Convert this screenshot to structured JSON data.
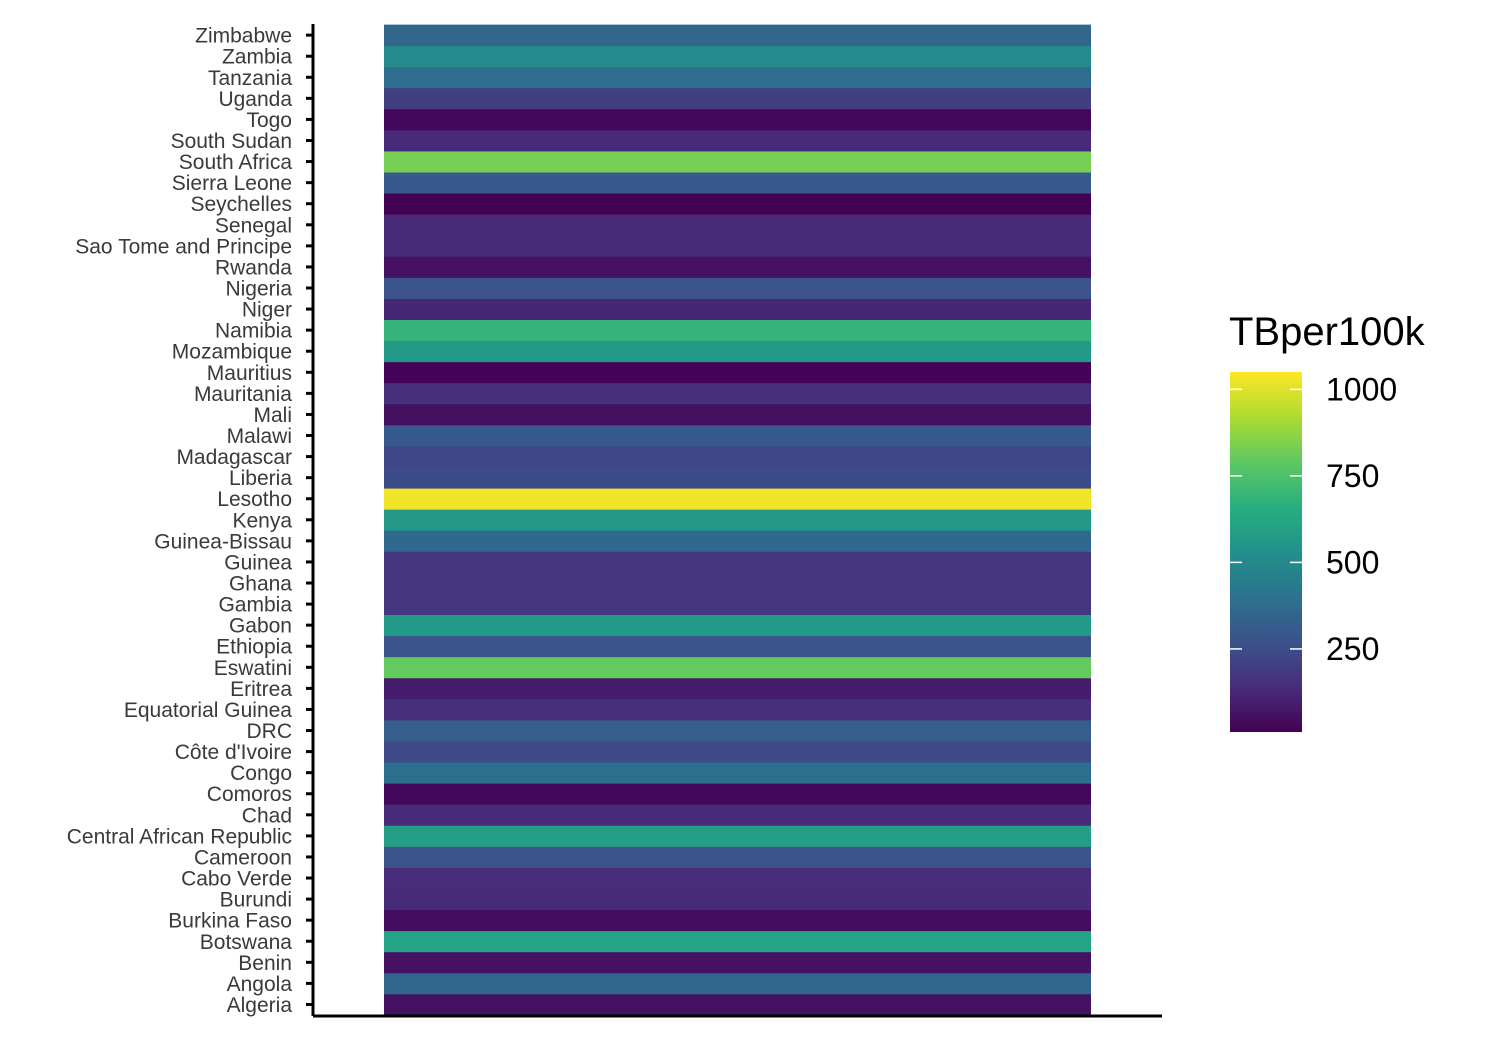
{
  "chart_data": {
    "type": "heatmap",
    "title": "",
    "xlabel": "",
    "ylabel": "",
    "categories": [
      "Algeria",
      "Angola",
      "Benin",
      "Botswana",
      "Burkina Faso",
      "Burundi",
      "Cabo Verde",
      "Cameroon",
      "Central African Republic",
      "Chad",
      "Comoros",
      "Congo",
      "Côte d'Ivoire",
      "DRC",
      "Equatorial Guinea",
      "Eritrea",
      "Eswatini",
      "Ethiopia",
      "Gabon",
      "Gambia",
      "Ghana",
      "Guinea",
      "Guinea-Bissau",
      "Kenya",
      "Lesotho",
      "Liberia",
      "Madagascar",
      "Malawi",
      "Mali",
      "Mauritania",
      "Mauritius",
      "Mozambique",
      "Namibia",
      "Niger",
      "Nigeria",
      "Rwanda",
      "Sao Tome and Principe",
      "Senegal",
      "Seychelles",
      "Sierra Leone",
      "South Africa",
      "South Sudan",
      "Togo",
      "Uganda",
      "Tanzania",
      "Zambia",
      "Zimbabwe"
    ],
    "values": [
      60,
      355,
      60,
      610,
      45,
      130,
      140,
      270,
      590,
      135,
      30,
      385,
      240,
      320,
      150,
      90,
      800,
      270,
      570,
      175,
      175,
      175,
      360,
      560,
      1030,
      250,
      230,
      300,
      50,
      150,
      15,
      560,
      690,
      120,
      270,
      60,
      130,
      130,
      10,
      300,
      830,
      130,
      30,
      200,
      380,
      500,
      350
    ],
    "legend": {
      "title": "TBper100k",
      "ticks": [
        250,
        500,
        750,
        1000
      ],
      "tick_labels": [
        "250",
        "500",
        "750",
        "1000"
      ],
      "range": [
        10,
        1050
      ],
      "colormap": "viridis",
      "position": "right"
    },
    "grid": false
  }
}
